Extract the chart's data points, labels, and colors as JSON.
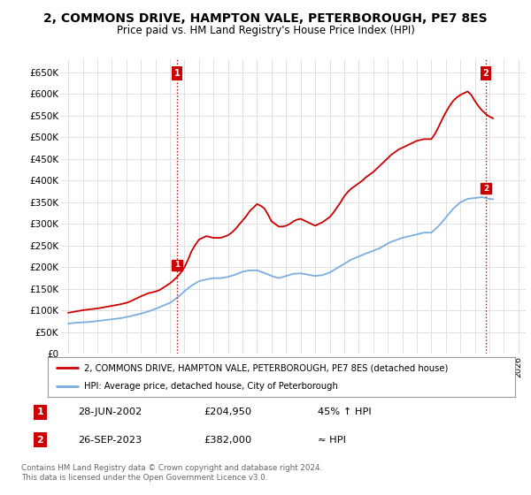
{
  "title": "2, COMMONS DRIVE, HAMPTON VALE, PETERBOROUGH, PE7 8ES",
  "subtitle": "Price paid vs. HM Land Registry's House Price Index (HPI)",
  "title_fontsize": 10,
  "subtitle_fontsize": 8.5,
  "ylabel_ticks": [
    "£0",
    "£50K",
    "£100K",
    "£150K",
    "£200K",
    "£250K",
    "£300K",
    "£350K",
    "£400K",
    "£450K",
    "£500K",
    "£550K",
    "£600K",
    "£650K"
  ],
  "ytick_values": [
    0,
    50000,
    100000,
    150000,
    200000,
    250000,
    300000,
    350000,
    400000,
    450000,
    500000,
    550000,
    600000,
    650000
  ],
  "xlim": [
    1994.5,
    2026.5
  ],
  "ylim": [
    0,
    680000
  ],
  "background_color": "#ffffff",
  "grid_color": "#e0e0e0",
  "red_line_color": "#cc0000",
  "blue_line_color": "#7aade0",
  "annotation_box_color": "#cc0000",
  "legend_text_red": "2, COMMONS DRIVE, HAMPTON VALE, PETERBOROUGH, PE7 8ES (detached house)",
  "legend_text_blue": "HPI: Average price, detached house, City of Peterborough",
  "transaction1_date": "28-JUN-2002",
  "transaction1_price": "£204,950",
  "transaction1_hpi": "45% ↑ HPI",
  "transaction2_date": "26-SEP-2023",
  "transaction2_price": "£382,000",
  "transaction2_hpi": "≈ HPI",
  "footer": "Contains HM Land Registry data © Crown copyright and database right 2024.\nThis data is licensed under the Open Government Licence v3.0.",
  "hpi_years": [
    1995,
    1995.25,
    1995.5,
    1995.75,
    1996,
    1996.25,
    1996.5,
    1996.75,
    1997,
    1997.25,
    1997.5,
    1997.75,
    1998,
    1998.25,
    1998.5,
    1998.75,
    1999,
    1999.25,
    1999.5,
    1999.75,
    2000,
    2000.25,
    2000.5,
    2000.75,
    2001,
    2001.25,
    2001.5,
    2001.75,
    2002,
    2002.25,
    2002.5,
    2002.75,
    2003,
    2003.25,
    2003.5,
    2003.75,
    2004,
    2004.25,
    2004.5,
    2004.75,
    2005,
    2005.25,
    2005.5,
    2005.75,
    2006,
    2006.25,
    2006.5,
    2006.75,
    2007,
    2007.25,
    2007.5,
    2007.75,
    2008,
    2008.25,
    2008.5,
    2008.75,
    2009,
    2009.25,
    2009.5,
    2009.75,
    2010,
    2010.25,
    2010.5,
    2010.75,
    2011,
    2011.25,
    2011.5,
    2011.75,
    2012,
    2012.25,
    2012.5,
    2012.75,
    2013,
    2013.25,
    2013.5,
    2013.75,
    2014,
    2014.25,
    2014.5,
    2014.75,
    2015,
    2015.25,
    2015.5,
    2015.75,
    2016,
    2016.25,
    2016.5,
    2016.75,
    2017,
    2017.25,
    2017.5,
    2017.75,
    2018,
    2018.25,
    2018.5,
    2018.75,
    2019,
    2019.25,
    2019.5,
    2019.75,
    2020,
    2020.25,
    2020.5,
    2020.75,
    2021,
    2021.25,
    2021.5,
    2021.75,
    2022,
    2022.25,
    2022.5,
    2022.75,
    2023,
    2023.25,
    2023.5,
    2023.75,
    2024,
    2024.25
  ],
  "hpi_values": [
    70000,
    71000,
    72000,
    72500,
    73000,
    73500,
    74000,
    75000,
    76000,
    77000,
    78000,
    79000,
    80000,
    81000,
    82000,
    83500,
    85000,
    87000,
    89000,
    91000,
    93000,
    95500,
    98000,
    101000,
    104000,
    107500,
    111000,
    114500,
    118000,
    124000,
    130000,
    137000,
    145000,
    151500,
    158000,
    163000,
    168000,
    170000,
    172000,
    173500,
    175000,
    175000,
    175000,
    176500,
    178000,
    180500,
    183000,
    186500,
    190000,
    191500,
    193000,
    193000,
    193000,
    190000,
    187000,
    183500,
    180000,
    177500,
    175000,
    177500,
    180000,
    182500,
    185000,
    185500,
    186000,
    184500,
    183000,
    181500,
    180000,
    181000,
    182000,
    185000,
    188000,
    193000,
    198000,
    203000,
    208000,
    213000,
    218000,
    221500,
    225000,
    228500,
    232000,
    235000,
    238000,
    241500,
    245000,
    250000,
    255000,
    259000,
    262000,
    265000,
    268000,
    270000,
    272000,
    274000,
    276000,
    278000,
    280000,
    280000,
    280000,
    287500,
    295000,
    305000,
    315000,
    325000,
    335000,
    342500,
    350000,
    354000,
    358000,
    359000,
    360000,
    361000,
    362000,
    360000,
    358000,
    357000
  ],
  "red_years": [
    1995,
    1995.25,
    1995.5,
    1995.75,
    1996,
    1996.25,
    1996.5,
    1996.75,
    1997,
    1997.25,
    1997.5,
    1997.75,
    1998,
    1998.25,
    1998.5,
    1998.75,
    1999,
    1999.25,
    1999.5,
    1999.75,
    2000,
    2000.25,
    2000.5,
    2000.75,
    2001,
    2001.25,
    2001.5,
    2001.75,
    2002,
    2002.25,
    2002.5,
    2002.75,
    2003,
    2003.25,
    2003.5,
    2003.75,
    2004,
    2004.25,
    2004.5,
    2004.75,
    2005,
    2005.25,
    2005.5,
    2005.75,
    2006,
    2006.25,
    2006.5,
    2006.75,
    2007,
    2007.25,
    2007.5,
    2007.75,
    2008,
    2008.25,
    2008.5,
    2008.75,
    2009,
    2009.25,
    2009.5,
    2009.75,
    2010,
    2010.25,
    2010.5,
    2010.75,
    2011,
    2011.25,
    2011.5,
    2011.75,
    2012,
    2012.25,
    2012.5,
    2012.75,
    2013,
    2013.25,
    2013.5,
    2013.75,
    2014,
    2014.25,
    2014.5,
    2014.75,
    2015,
    2015.25,
    2015.5,
    2015.75,
    2016,
    2016.25,
    2016.5,
    2016.75,
    2017,
    2017.25,
    2017.5,
    2017.75,
    2018,
    2018.25,
    2018.5,
    2018.75,
    2019,
    2019.25,
    2019.5,
    2019.75,
    2020,
    2020.25,
    2020.5,
    2020.75,
    2021,
    2021.25,
    2021.5,
    2021.75,
    2022,
    2022.25,
    2022.5,
    2022.75,
    2023,
    2023.25,
    2023.5,
    2023.75,
    2024,
    2024.25
  ],
  "red_values": [
    95000,
    96500,
    98000,
    99500,
    101000,
    102000,
    103000,
    104000,
    105000,
    106500,
    108000,
    109500,
    111000,
    112500,
    114000,
    116000,
    118000,
    121000,
    125000,
    129000,
    133000,
    136500,
    140000,
    142000,
    144000,
    147000,
    152000,
    157500,
    163000,
    170000,
    178000,
    188000,
    200000,
    218000,
    238000,
    252000,
    264000,
    268000,
    272000,
    270000,
    268000,
    268000,
    268000,
    271000,
    274000,
    280000,
    288000,
    298000,
    308000,
    318000,
    330000,
    338000,
    346000,
    342000,
    336000,
    322000,
    306000,
    300000,
    294000,
    294000,
    296000,
    300000,
    306000,
    310000,
    312000,
    308000,
    304000,
    300000,
    296000,
    300000,
    304000,
    310000,
    316000,
    326000,
    338000,
    350000,
    364000,
    374000,
    382000,
    388000,
    394000,
    400000,
    408000,
    414000,
    420000,
    428000,
    436000,
    444000,
    452000,
    460000,
    466000,
    472000,
    476000,
    480000,
    484000,
    488000,
    492000,
    494000,
    496000,
    496000,
    496000,
    508000,
    524000,
    542000,
    558000,
    572000,
    584000,
    592000,
    598000,
    602000,
    606000,
    598000,
    584000,
    572000,
    562000,
    554000,
    548000,
    544000
  ],
  "transaction1_x": 2002.5,
  "transaction1_y": 204950,
  "transaction2_x": 2023.75,
  "transaction2_y": 382000,
  "vline1_x": 2002.5,
  "vline2_x": 2023.75
}
